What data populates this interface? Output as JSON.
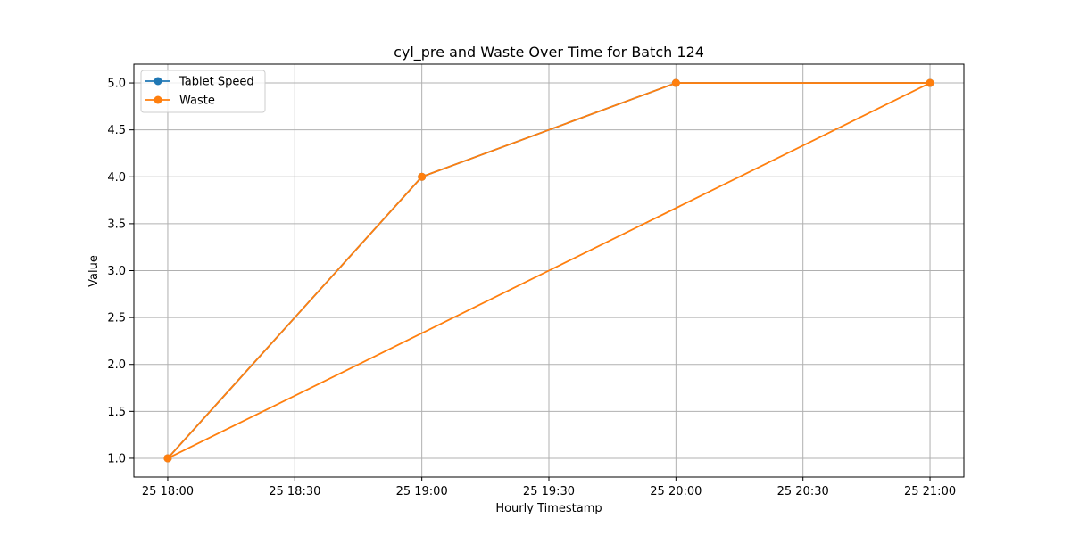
{
  "chart_data": {
    "type": "line",
    "title": "cyl_pre and Waste Over Time for Batch 124",
    "xlabel": "Hourly Timestamp",
    "ylabel": "Value",
    "x_ticks": [
      "25 18:00",
      "25 18:30",
      "25 19:00",
      "25 19:30",
      "25 20:00",
      "25 20:30",
      "25 21:00"
    ],
    "y_ticks": [
      "1.0",
      "1.5",
      "2.0",
      "2.5",
      "3.0",
      "3.5",
      "4.0",
      "4.5",
      "5.0"
    ],
    "xlim": [
      "25 17:52",
      "25 21:08"
    ],
    "ylim": [
      0.8,
      5.2
    ],
    "grid": true,
    "legend_position": "top-left",
    "series": [
      {
        "name": "Tablet Speed",
        "color": "#1f77b4",
        "x": [
          "25 18:00",
          "25 19:00",
          "25 20:00",
          "25 21:00"
        ],
        "values": [
          1.0,
          4.0,
          5.0,
          5.0
        ]
      },
      {
        "name": "Waste",
        "color": "#ff7f0e",
        "x": [
          "25 18:00",
          "25 19:00",
          "25 20:00",
          "25 21:00",
          "25 18:00"
        ],
        "values": [
          1.0,
          4.0,
          5.0,
          5.0,
          1.0
        ]
      }
    ]
  }
}
